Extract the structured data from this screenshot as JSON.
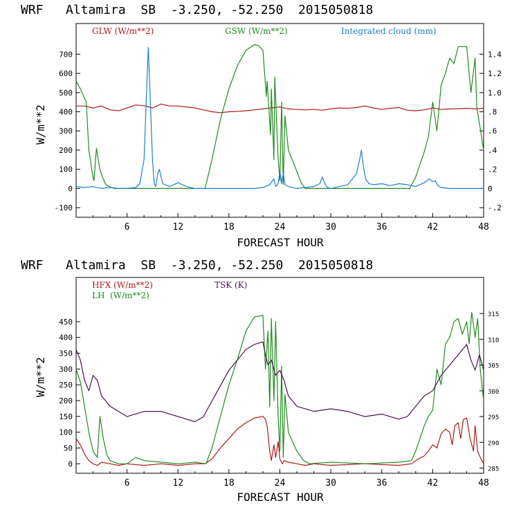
{
  "chart_data": [
    {
      "type": "line",
      "title": "WRF   Altamira  SB  -3.250, -52.250  2015050818",
      "xlabel": "FORECAST HOUR",
      "ylabel": "W/m**2",
      "xlim": [
        0,
        48
      ],
      "ylim": [
        -150,
        860
      ],
      "y2lim": [
        -0.3,
        1.72
      ],
      "x_ticks": [
        "6",
        "12",
        "18",
        "24",
        "30",
        "36",
        "42",
        "48"
      ],
      "y_ticks": [
        "-100",
        "0",
        "100",
        "200",
        "300",
        "400",
        "500",
        "600",
        "700"
      ],
      "y2_ticks": [
        "-.2",
        "0",
        ".2",
        ".4",
        ".6",
        ".8",
        "1.0",
        "1.2",
        "1.4"
      ],
      "legend": [
        {
          "label": "GLW (W/m**2)",
          "color": "#b01818"
        },
        {
          "label": "GSW (W/m**2)",
          "color": "#1e8c1e"
        },
        {
          "label": "Integrated cloud (mm)",
          "color": "#1a7fd0"
        }
      ],
      "series": [
        {
          "name": "GLW",
          "axis": "left",
          "color": "#b01818",
          "x": [
            0,
            1,
            2,
            3,
            4,
            5,
            6,
            7,
            8,
            9,
            10,
            11,
            12,
            13,
            14,
            15,
            16,
            17,
            18,
            19,
            20,
            21,
            22,
            23,
            24,
            25,
            26,
            27,
            28,
            29,
            30,
            31,
            32,
            33,
            34,
            35,
            36,
            37,
            38,
            39,
            40,
            41,
            42,
            43,
            44,
            45,
            46,
            47,
            48
          ],
          "y": [
            430,
            430,
            420,
            430,
            410,
            405,
            420,
            435,
            432,
            420,
            440,
            430,
            430,
            425,
            420,
            410,
            400,
            395,
            400,
            402,
            405,
            410,
            415,
            420,
            425,
            415,
            412,
            410,
            412,
            408,
            415,
            420,
            418,
            422,
            430,
            420,
            412,
            418,
            422,
            408,
            405,
            410,
            420,
            412,
            415,
            416,
            418,
            415,
            418
          ]
        },
        {
          "name": "GSW",
          "axis": "left",
          "color": "#1e8c1e",
          "x": [
            0,
            0.5,
            1.2,
            1.5,
            2.0,
            2.1,
            2.4,
            2.5,
            2.8,
            3.1,
            3.5,
            3.9,
            4.2,
            4.5,
            15.2,
            16,
            17,
            18,
            19,
            20,
            21,
            21.5,
            22,
            22.4,
            22.5,
            22.9,
            23.0,
            23.3,
            23.4,
            23.8,
            24.0,
            24.2,
            24.4,
            24.6,
            25,
            26,
            26.5,
            27,
            39.3,
            40,
            41,
            41.5,
            42,
            42.5,
            43,
            43.5,
            44,
            44.5,
            45,
            46,
            46.5,
            47,
            47.2,
            47.5,
            48
          ],
          "y": [
            560,
            520,
            450,
            200,
            60,
            40,
            210,
            180,
            100,
            60,
            20,
            10,
            5,
            0,
            0,
            150,
            360,
            520,
            640,
            720,
            750,
            745,
            720,
            480,
            560,
            280,
            520,
            150,
            580,
            160,
            40,
            450,
            20,
            380,
            200,
            90,
            30,
            0,
            0,
            60,
            190,
            270,
            450,
            300,
            540,
            600,
            680,
            650,
            740,
            740,
            500,
            680,
            420,
            340,
            200
          ]
        },
        {
          "name": "Integrated cloud",
          "axis": "right",
          "color": "#1a7fd0",
          "x": [
            0,
            1,
            2,
            3,
            4,
            5,
            6,
            7,
            7.5,
            8.0,
            8.3,
            8.5,
            8.7,
            9.0,
            9.2,
            9.4,
            9.6,
            9.8,
            10.2,
            11,
            11.5,
            12,
            13,
            14,
            15,
            16,
            17,
            18,
            19,
            20,
            21,
            22,
            22.8,
            23.3,
            23.5,
            23.8,
            24.0,
            24.2,
            24.4,
            24.6,
            25,
            26,
            27,
            28,
            28.7,
            29.0,
            29.3,
            29.6,
            30,
            31,
            32,
            33,
            33.4,
            33.6,
            33.8,
            34.1,
            34.5,
            35,
            36,
            37,
            38,
            39,
            40,
            41,
            41.6,
            42,
            42.3,
            42.6,
            43,
            44,
            45,
            46,
            47,
            48
          ],
          "y": [
            0.02,
            0.01,
            0.02,
            0.0,
            0.01,
            0.0,
            0.0,
            0.01,
            0.05,
            0.3,
            1.0,
            1.47,
            1.0,
            0.3,
            0.05,
            0.02,
            0.15,
            0.2,
            0.05,
            0.02,
            0.04,
            0.06,
            0.02,
            0.0,
            0.0,
            0.0,
            0.0,
            0.0,
            0.0,
            0.0,
            0.0,
            0.01,
            0.04,
            0.1,
            0.02,
            0.05,
            0.18,
            0.05,
            0.16,
            0.04,
            0.02,
            0.0,
            0.01,
            0.02,
            0.05,
            0.12,
            0.05,
            0.01,
            0.0,
            0.02,
            0.04,
            0.15,
            0.3,
            0.4,
            0.25,
            0.1,
            0.05,
            0.04,
            0.05,
            0.03,
            0.05,
            0.04,
            0.02,
            0.06,
            0.1,
            0.07,
            0.08,
            0.03,
            0.01,
            0.0,
            0.0,
            0.0,
            0.0,
            0.0
          ]
        }
      ]
    },
    {
      "type": "line",
      "title": "WRF   Altamira  SB  -3.250, -52.250  2015050818",
      "xlabel": "FORECAST HOUR",
      "ylabel": "W/m**2",
      "xlim": [
        0,
        48
      ],
      "ylim": [
        -30,
        590
      ],
      "y2lim": [
        284,
        322
      ],
      "x_ticks": [
        "6",
        "12",
        "18",
        "24",
        "30",
        "36",
        "42",
        "48"
      ],
      "y_ticks": [
        "0",
        "50",
        "100",
        "150",
        "200",
        "250",
        "300",
        "350",
        "400",
        "450"
      ],
      "y2_ticks": [
        "285",
        "290",
        "295",
        "300",
        "305",
        "310",
        "315"
      ],
      "legend": [
        {
          "label": "HFX (W/m**2)",
          "color": "#b01818"
        },
        {
          "label": "LH  (W/m**2)",
          "color": "#1e8c1e"
        },
        {
          "label": "TSK (K)",
          "color": "#4a1050"
        }
      ],
      "series": [
        {
          "name": "HFX",
          "axis": "left",
          "color": "#b01818",
          "x": [
            0,
            0.5,
            1.0,
            1.5,
            2.0,
            2.5,
            3.0,
            4,
            5,
            6,
            8,
            10,
            12,
            14,
            15.2,
            16,
            17,
            18,
            19,
            20,
            21,
            22,
            22.3,
            22.5,
            22.8,
            23.0,
            23.3,
            23.5,
            23.8,
            24.0,
            24.3,
            24.5,
            25,
            26,
            27,
            28,
            30,
            34,
            38,
            39.5,
            40,
            41,
            41.5,
            42,
            42.5,
            43,
            43.5,
            44,
            44.3,
            44.6,
            45,
            45.3,
            45.6,
            46,
            46.4,
            46.8,
            47,
            47.3,
            47.6,
            48
          ],
          "y": [
            80,
            60,
            30,
            10,
            0,
            -5,
            5,
            0,
            -5,
            0,
            -5,
            0,
            -5,
            0,
            0,
            15,
            50,
            80,
            110,
            130,
            145,
            150,
            140,
            120,
            40,
            10,
            60,
            20,
            70,
            15,
            0,
            10,
            5,
            0,
            -5,
            0,
            -5,
            0,
            -5,
            0,
            10,
            25,
            40,
            60,
            50,
            95,
            110,
            100,
            60,
            120,
            130,
            80,
            140,
            145,
            80,
            40,
            120,
            40,
            20,
            0
          ]
        },
        {
          "name": "LH",
          "axis": "left",
          "color": "#1e8c1e",
          "x": [
            0,
            0.5,
            1.0,
            1.5,
            2.0,
            2.5,
            2.8,
            3.2,
            3.6,
            4,
            5,
            6,
            7,
            8,
            10,
            12,
            14,
            15.3,
            16,
            17,
            18,
            19,
            20,
            21,
            22,
            22.3,
            22.6,
            22.8,
            23.0,
            23.3,
            23.5,
            23.8,
            24.0,
            24.2,
            24.4,
            24.6,
            25,
            26,
            26.8,
            27.5,
            30,
            34,
            38,
            39.5,
            40,
            41,
            41.5,
            42,
            42.5,
            43,
            43.5,
            44,
            44.5,
            45,
            45.5,
            46,
            46.3,
            46.6,
            47,
            47.3,
            47.6,
            48
          ],
          "y": [
            300,
            260,
            180,
            100,
            40,
            20,
            150,
            80,
            30,
            10,
            0,
            0,
            20,
            10,
            5,
            0,
            5,
            0,
            50,
            150,
            250,
            330,
            420,
            465,
            470,
            300,
            420,
            180,
            460,
            200,
            450,
            150,
            40,
            310,
            20,
            220,
            100,
            40,
            10,
            0,
            5,
            0,
            5,
            10,
            40,
            120,
            150,
            170,
            300,
            250,
            380,
            400,
            450,
            460,
            410,
            450,
            380,
            480,
            400,
            460,
            300,
            200
          ]
        },
        {
          "name": "TSK",
          "axis": "right",
          "color": "#4a1050",
          "x": [
            0,
            0.5,
            1.0,
            1.5,
            2.0,
            2.5,
            3.0,
            3.5,
            4,
            5,
            6,
            8,
            10,
            12,
            14,
            15,
            16,
            17,
            18,
            19,
            20,
            21,
            22,
            22.3,
            22.6,
            23,
            23.5,
            24,
            24.5,
            25,
            26,
            28,
            30,
            32,
            34,
            36,
            38,
            39,
            40,
            41,
            42,
            43,
            44,
            45,
            46,
            46.5,
            47,
            47.5,
            48
          ],
          "y": [
            308,
            306,
            302,
            300,
            303,
            302,
            299,
            298,
            297,
            296,
            295,
            296,
            296,
            295,
            294,
            295,
            298,
            301,
            304,
            306,
            308,
            309,
            309.5,
            307,
            305,
            306,
            303,
            304,
            302,
            299,
            297,
            296,
            296.5,
            296,
            295,
            295.5,
            294.5,
            295,
            297,
            299,
            300,
            303,
            305,
            307,
            309,
            306,
            304,
            307,
            304
          ]
        }
      ]
    }
  ]
}
